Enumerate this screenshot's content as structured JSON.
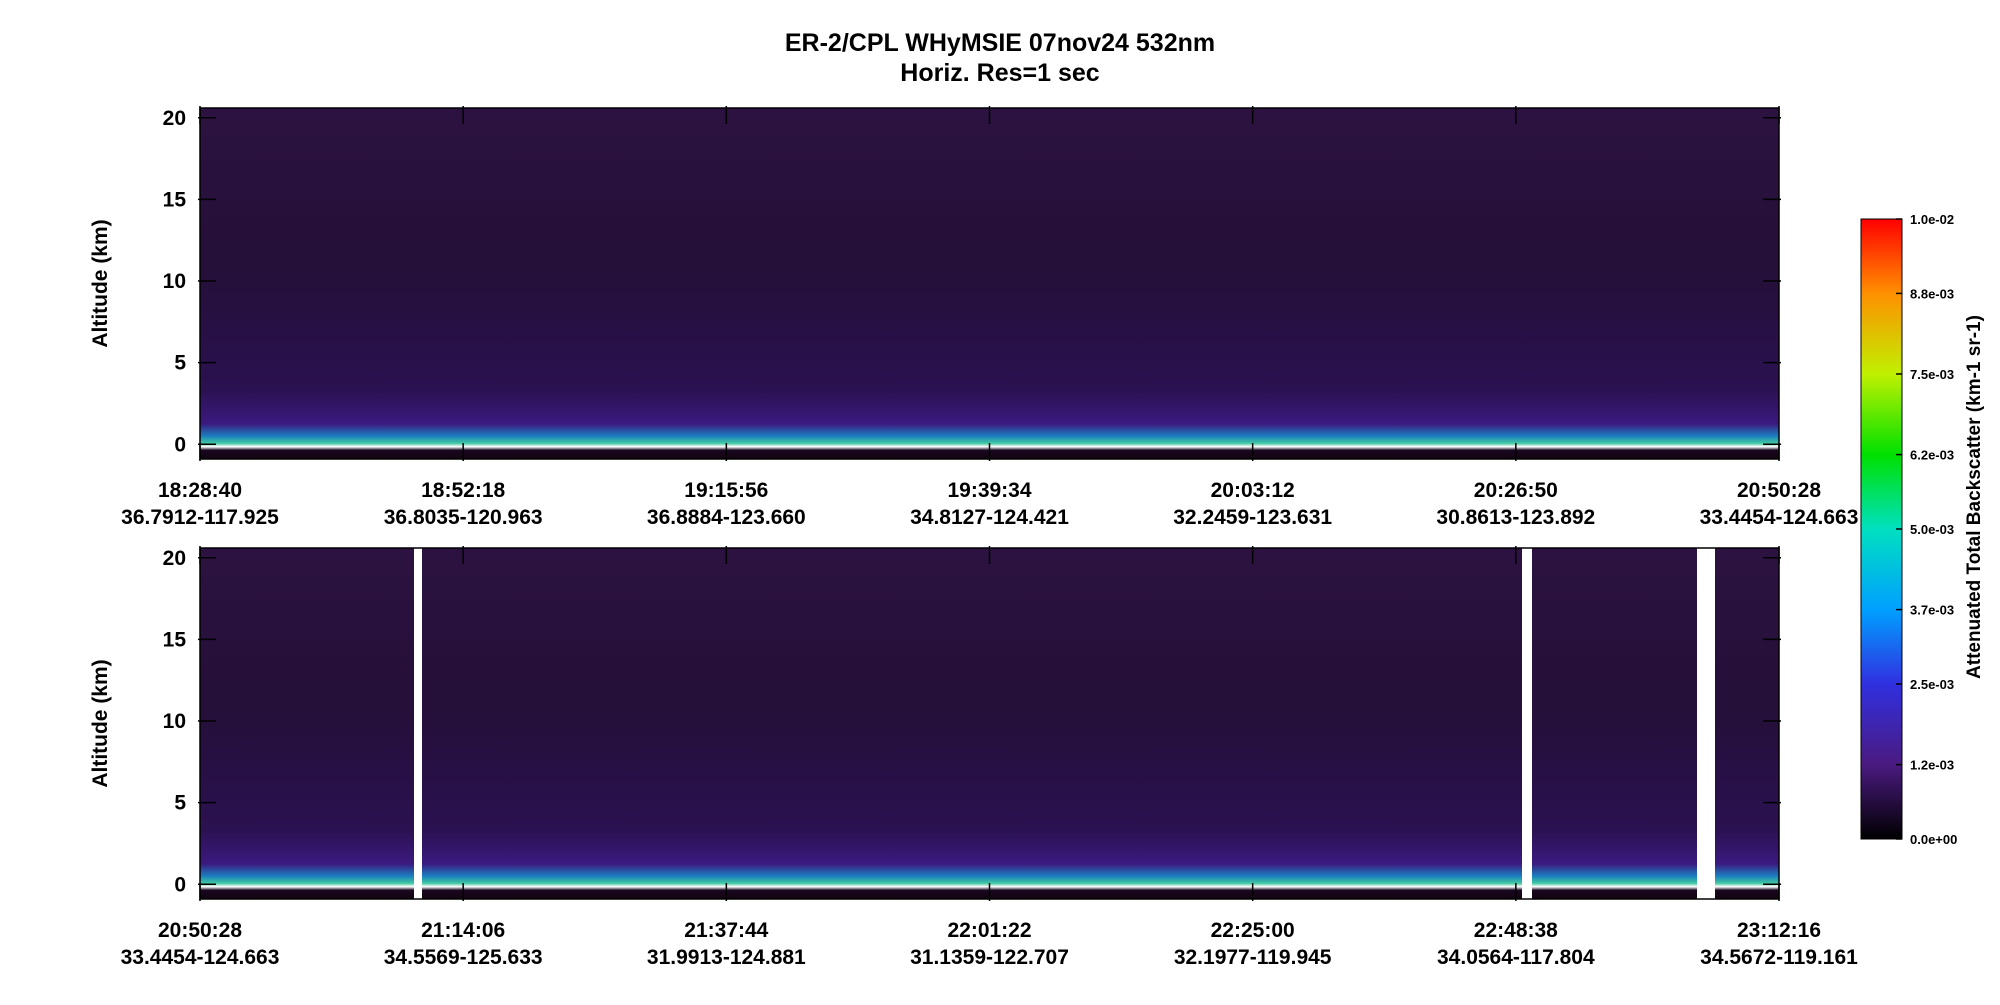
{
  "header": {
    "title": "ER-2/CPL  WHyMSIE  07nov24  532nm",
    "subtitle": "Horiz. Res=1 sec"
  },
  "chart_data": [
    {
      "type": "heatmap",
      "ylabel": "Altitude (km)",
      "ylim": [
        -0.9,
        20.6
      ],
      "yticks": [
        0,
        5,
        10,
        15,
        20
      ],
      "xticks": [
        {
          "time": "18:28:40",
          "location": "36.7912-117.925"
        },
        {
          "time": "18:52:18",
          "location": "36.8035-120.963"
        },
        {
          "time": "19:15:56",
          "location": "36.8884-123.660"
        },
        {
          "time": "19:39:34",
          "location": "34.8127-124.421"
        },
        {
          "time": "20:03:12",
          "location": "32.2459-123.631"
        },
        {
          "time": "20:26:50",
          "location": "30.8613-123.892"
        },
        {
          "time": "20:50:28",
          "location": "33.4454-124.663"
        }
      ]
    },
    {
      "type": "heatmap",
      "ylabel": "Altitude (km)",
      "ylim": [
        -0.9,
        20.6
      ],
      "yticks": [
        0,
        5,
        10,
        15,
        20
      ],
      "xticks": [
        {
          "time": "20:50:28",
          "location": "33.4454-124.663"
        },
        {
          "time": "21:14:06",
          "location": "34.5569-125.633"
        },
        {
          "time": "21:37:44",
          "location": "31.9913-124.881"
        },
        {
          "time": "22:01:22",
          "location": "31.1359-122.707"
        },
        {
          "time": "22:25:00",
          "location": "32.1977-119.945"
        },
        {
          "time": "22:48:38",
          "location": "34.0564-117.804"
        },
        {
          "time": "23:12:16",
          "location": "34.5672-119.161"
        }
      ]
    }
  ],
  "colorbar": {
    "label": "Attenuated Total Backscatter (km-1 sr-1)",
    "lim": [
      0,
      0.01
    ],
    "ticks": [
      {
        "value": 0,
        "label": "0.0e+00"
      },
      {
        "value": 0.0012,
        "label": "1.2e-03"
      },
      {
        "value": 0.0025,
        "label": "2.5e-03"
      },
      {
        "value": 0.0037,
        "label": "3.7e-03"
      },
      {
        "value": 0.005,
        "label": "5.0e-03"
      },
      {
        "value": 0.0062,
        "label": "6.2e-03"
      },
      {
        "value": 0.0075,
        "label": "7.5e-03"
      },
      {
        "value": 0.0088,
        "label": "8.8e-03"
      },
      {
        "value": 0.01,
        "label": "1.0e-02"
      }
    ]
  }
}
